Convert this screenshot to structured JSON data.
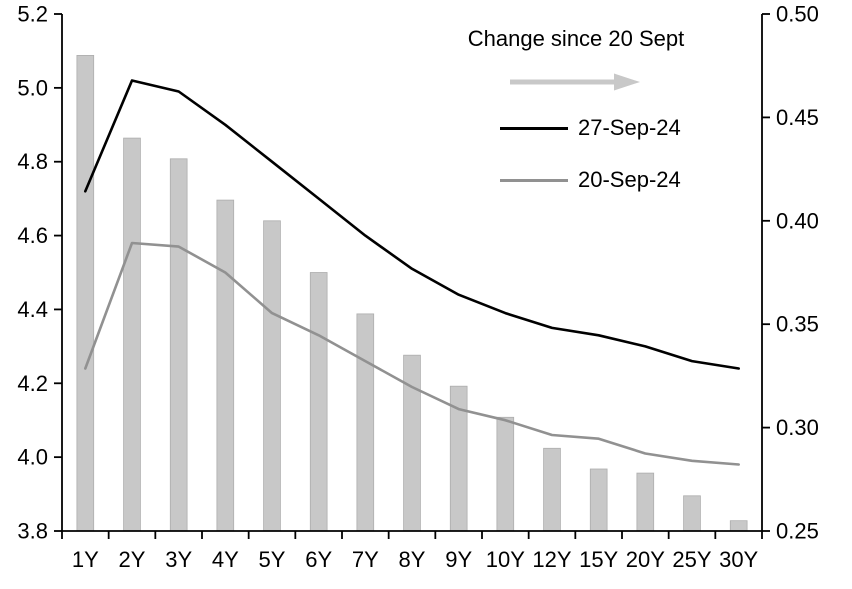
{
  "chart_data": {
    "type": "combo",
    "title": "",
    "categories": [
      "1Y",
      "2Y",
      "3Y",
      "4Y",
      "5Y",
      "6Y",
      "7Y",
      "8Y",
      "9Y",
      "10Y",
      "12Y",
      "15Y",
      "20Y",
      "25Y",
      "30Y"
    ],
    "series": [
      {
        "name": "Change since 20 Sept",
        "type": "bar",
        "axis": "right",
        "color": "#c8c8c8",
        "values": [
          0.48,
          0.44,
          0.43,
          0.41,
          0.4,
          0.375,
          0.355,
          0.335,
          0.32,
          0.305,
          0.29,
          0.28,
          0.278,
          0.267,
          0.255
        ]
      },
      {
        "name": "27-Sep-24",
        "type": "line",
        "axis": "left",
        "color": "#000000",
        "values": [
          4.72,
          5.02,
          4.99,
          4.9,
          4.8,
          4.7,
          4.6,
          4.51,
          4.44,
          4.39,
          4.35,
          4.33,
          4.3,
          4.26,
          4.24
        ]
      },
      {
        "name": "20-Sep-24",
        "type": "line",
        "axis": "left",
        "color": "#919191",
        "values": [
          4.24,
          4.58,
          4.57,
          4.5,
          4.39,
          4.33,
          4.26,
          4.19,
          4.13,
          4.1,
          4.06,
          4.05,
          4.01,
          3.99,
          3.98
        ]
      }
    ],
    "left_axis": {
      "min": 3.8,
      "max": 5.2,
      "ticks": [
        "3.8",
        "4.0",
        "4.2",
        "4.4",
        "4.6",
        "4.8",
        "5.0",
        "5.2"
      ]
    },
    "right_axis": {
      "min": 0.25,
      "max": 0.5,
      "ticks": [
        "0.25",
        "0.30",
        "0.35",
        "0.40",
        "0.45",
        "0.50"
      ]
    },
    "legend_position": "top-right-inside",
    "grid": false
  }
}
